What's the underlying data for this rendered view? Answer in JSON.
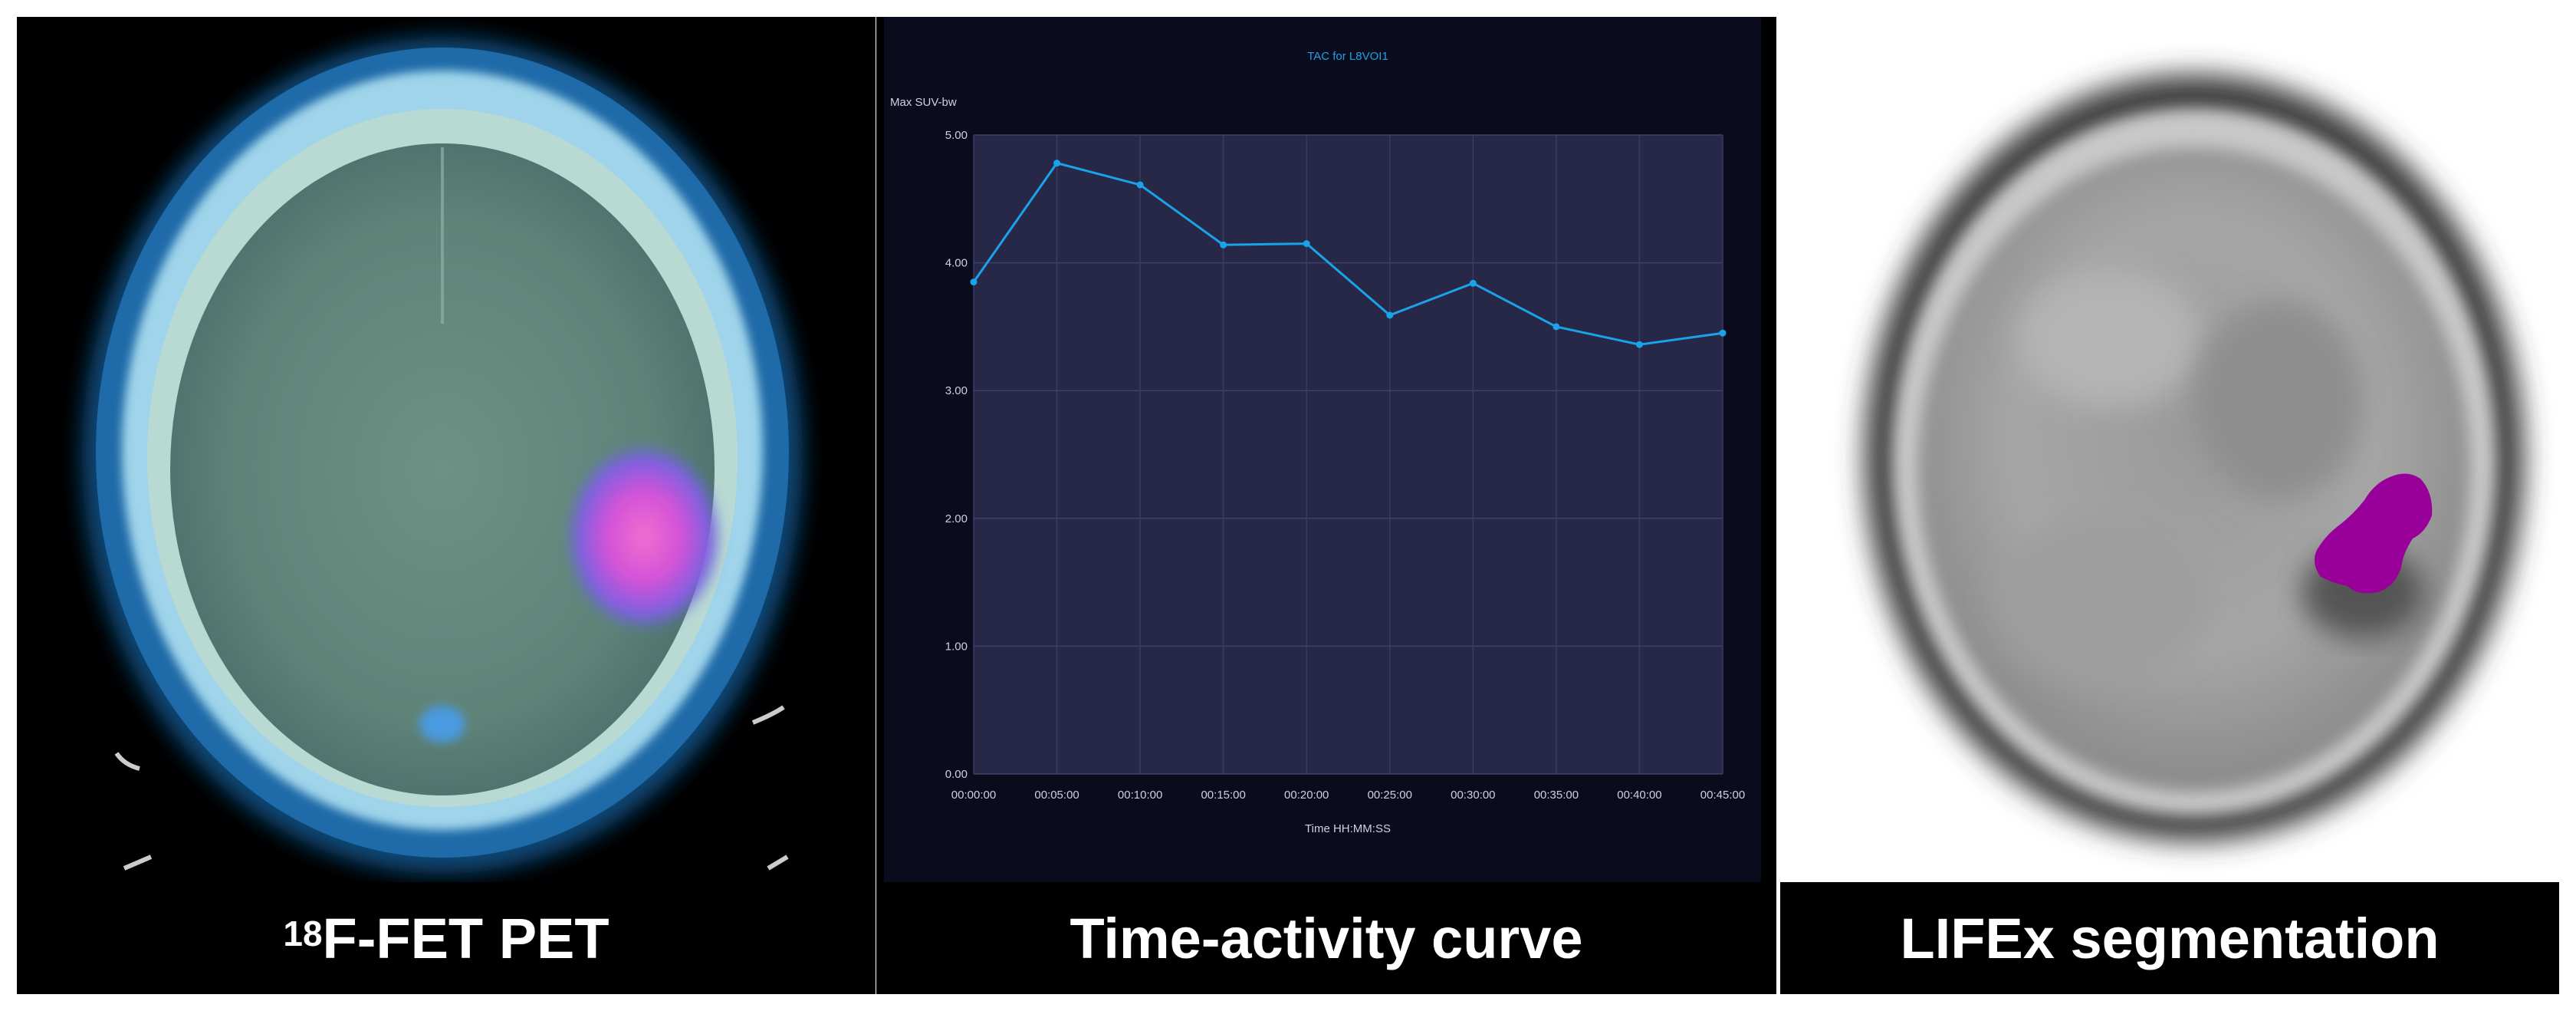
{
  "captions": {
    "pet_isotope": "18",
    "pet_label": "F-FET PET",
    "tac": "Time-activity curve",
    "lifex": "LIFEx segmentation"
  },
  "colors": {
    "plot_bg": "#272848",
    "panel_bg": "#0b0b1e",
    "line": "#1aa3e8",
    "title": "#1aa3e8",
    "lesion_pet": "#e455d2",
    "lesion_lifex": "#990099"
  },
  "chart_data": {
    "type": "line",
    "title": "TAC for L8VOI1",
    "xlabel": "Time HH:MM:SS",
    "ylabel": "Max SUV-bw",
    "ylim": [
      0,
      5
    ],
    "yticks": [
      "0.00",
      "1.00",
      "2.00",
      "3.00",
      "4.00",
      "5.00"
    ],
    "x": [
      "00:00:00",
      "00:05:00",
      "00:10:00",
      "00:15:00",
      "00:20:00",
      "00:25:00",
      "00:30:00",
      "00:35:00",
      "00:40:00",
      "00:45:00"
    ],
    "series": [
      {
        "values": [
          3.85,
          4.78,
          4.61,
          4.14,
          4.15,
          3.59,
          3.84,
          3.5,
          3.36,
          3.45
        ]
      }
    ],
    "grid": true
  }
}
